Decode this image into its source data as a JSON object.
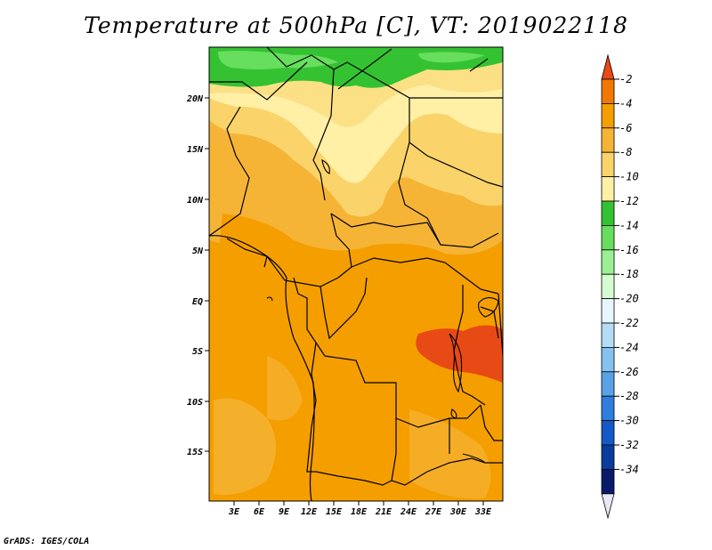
{
  "title": "Temperature at 500hPa [C], VT: 2019022118",
  "credit": "GrADS: IGES/COLA",
  "lat_labels": [
    "20N",
    "15N",
    "10N",
    "5N",
    "EQ",
    "5S",
    "10S",
    "15S"
  ],
  "lon_labels": [
    "3E",
    "6E",
    "9E",
    "12E",
    "15E",
    "18E",
    "21E",
    "24E",
    "27E",
    "30E",
    "33E"
  ],
  "colorbar": {
    "labels": [
      "-2",
      "-4",
      "-6",
      "-8",
      "-10",
      "-12",
      "-14",
      "-16",
      "-18",
      "-20",
      "-22",
      "-24",
      "-26",
      "-28",
      "-30",
      "-32",
      "-34"
    ],
    "colors": [
      "#e84a16",
      "#f07800",
      "#f59e00",
      "#f5b436",
      "#fad46a",
      "#fff0a6",
      "#34c232",
      "#67de5e",
      "#9af092",
      "#d5fbd0",
      "#e7f6fb",
      "#b4dcf6",
      "#86c2f0",
      "#5aa2e6",
      "#2f7ede",
      "#1459c8",
      "#0a3c9e",
      "#0a1a6a",
      "#e8e8f6"
    ]
  },
  "field_colors": {
    "band_m12_m14": "#34c232",
    "band_m14_m16": "#67de5e",
    "band_m10_m12": "#fff0a6",
    "band_m8_m10": "#fad46a",
    "band_m6_m8": "#f5b436",
    "band_m4_m6": "#f59e00",
    "band_m2_m4": "#f07800",
    "band_m0_m2": "#e84a16"
  }
}
